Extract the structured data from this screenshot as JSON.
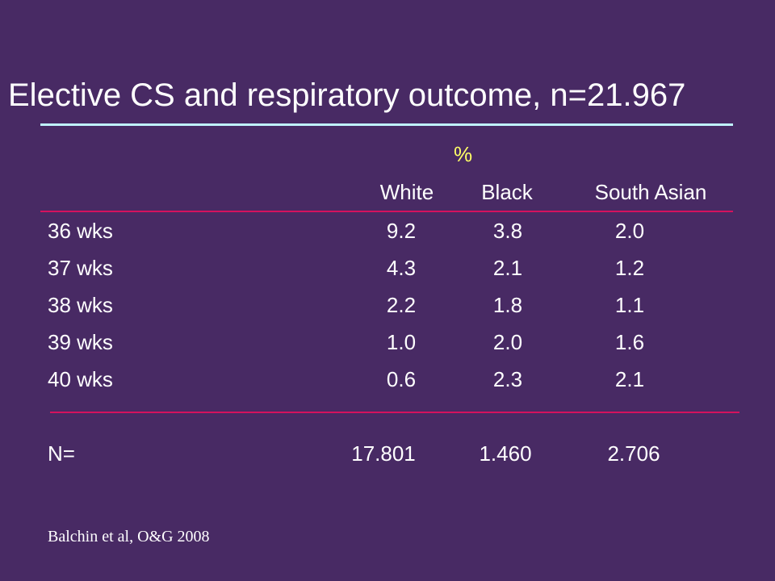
{
  "title": "Elective CS and respiratory outcome, n=21.967",
  "table": {
    "unit": "%",
    "columns": [
      "White",
      "Black",
      "South Asian"
    ],
    "rows": [
      {
        "label": "36 wks",
        "values": [
          "9.2",
          "3.8",
          "2.0"
        ]
      },
      {
        "label": "37 wks",
        "values": [
          "4.3",
          "2.1",
          "1.2"
        ]
      },
      {
        "label": "38 wks",
        "values": [
          "2.2",
          "1.8",
          "1.1"
        ]
      },
      {
        "label": "39 wks",
        "values": [
          "1.0",
          "2.0",
          "1.6"
        ]
      },
      {
        "label": "40 wks",
        "values": [
          "0.6",
          "2.3",
          "2.1"
        ]
      }
    ],
    "totals": {
      "label": "N=",
      "values": [
        "17.801",
        "1.460",
        "2.706"
      ]
    }
  },
  "source": "Balchin et al, O&G 2008",
  "colors": {
    "background": "#482a64",
    "title_rule": "#c0f2ff",
    "table_rule": "#d4125e",
    "unit_text": "#ffff66"
  }
}
